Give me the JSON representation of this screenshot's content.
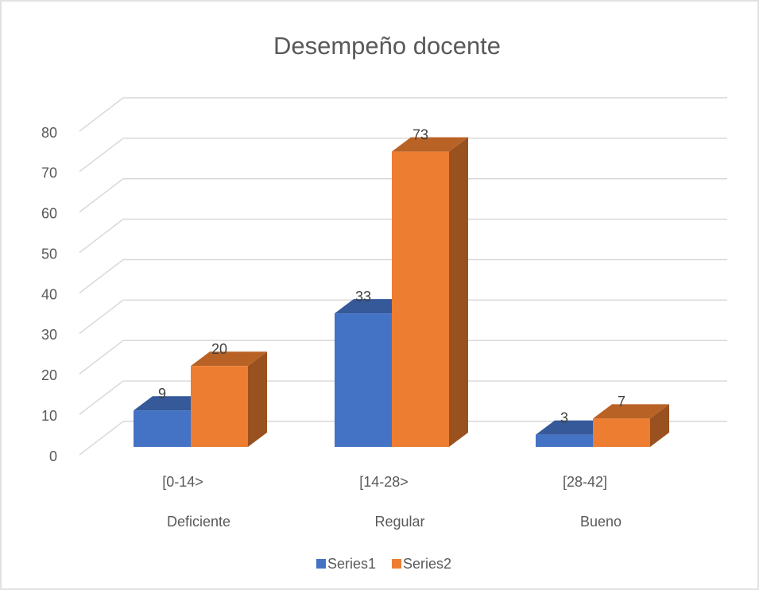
{
  "chart_data": {
    "type": "bar3d",
    "title": "Desempeño docente",
    "categories": [
      [
        "[0-14>",
        "Deficiente"
      ],
      [
        "[14-28>",
        "Regular"
      ],
      [
        "[28-42]",
        "Bueno"
      ]
    ],
    "series": [
      {
        "name": "Series1",
        "color": "#4472c4",
        "values": [
          9,
          33,
          3
        ]
      },
      {
        "name": "Series2",
        "color": "#ed7d31",
        "values": [
          20,
          73,
          7
        ]
      }
    ],
    "ylim": [
      0,
      80
    ],
    "yticks": [
      0,
      10,
      20,
      30,
      40,
      50,
      60,
      70,
      80
    ],
    "grid": true,
    "legend": "bottom"
  }
}
